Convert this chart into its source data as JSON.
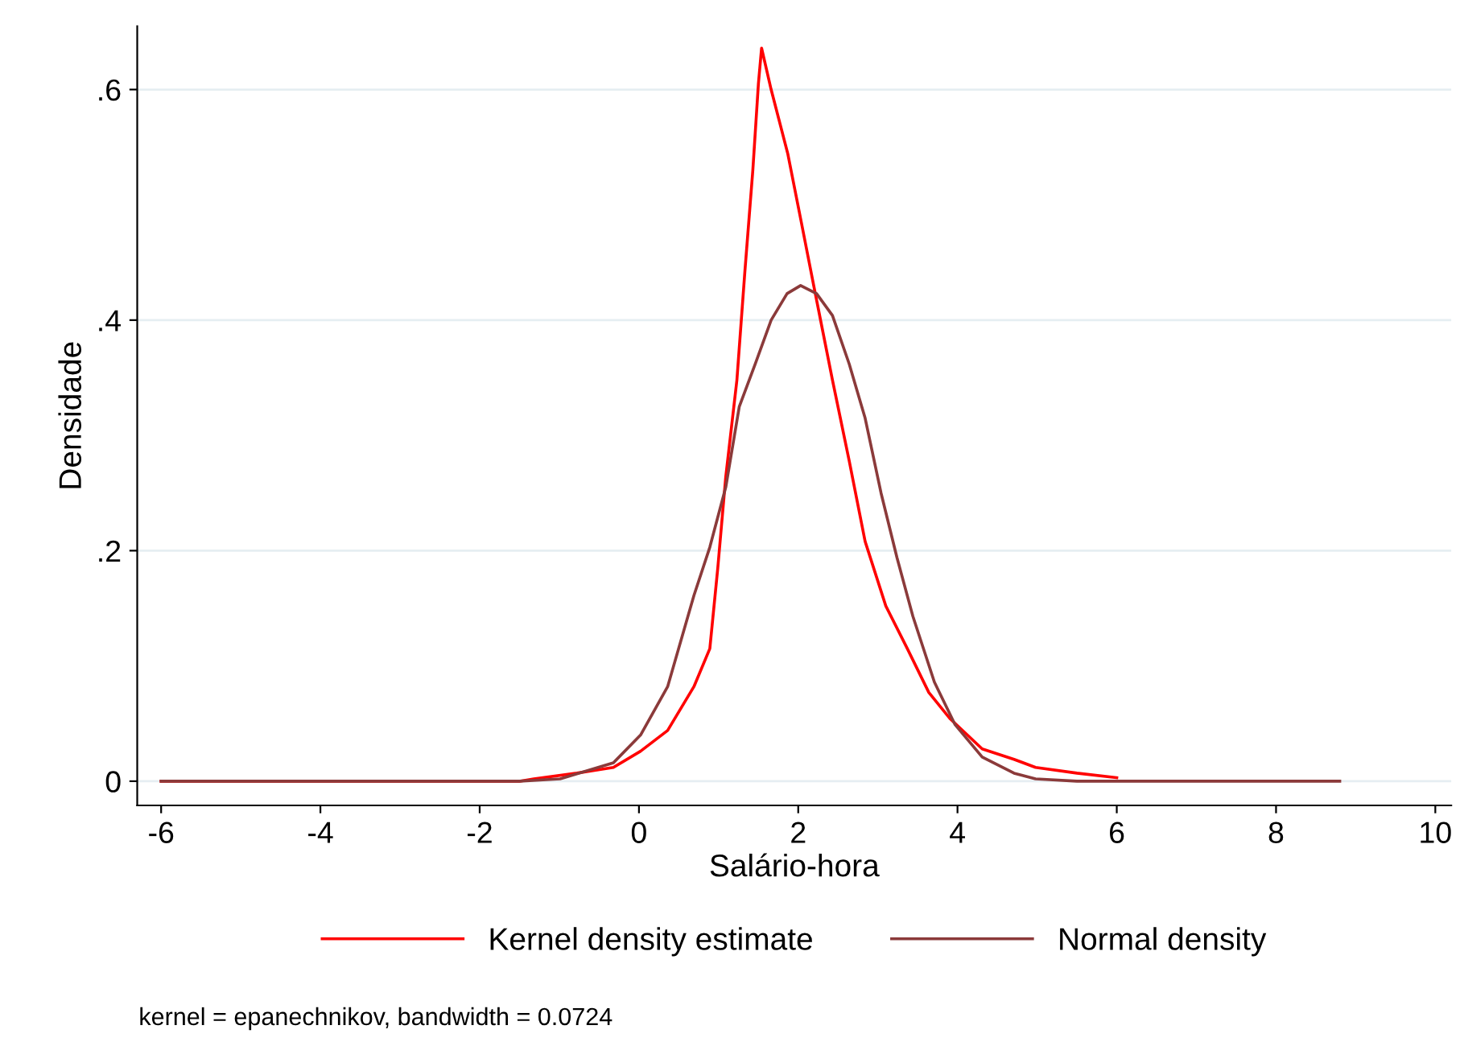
{
  "chart_data": {
    "type": "line",
    "xlabel": "Salário-hora",
    "ylabel": "Densidade",
    "xlim": [
      -6.3,
      10.2
    ],
    "ylim": [
      -0.021,
      0.655
    ],
    "xticks": [
      -6,
      -4,
      -2,
      0,
      2,
      4,
      6,
      8,
      10
    ],
    "yticks": [
      {
        "value": 0,
        "label": "0"
      },
      {
        "value": 0.2,
        "label": ".2"
      },
      {
        "value": 0.4,
        "label": ".4"
      },
      {
        "value": 0.6,
        "label": ".6"
      }
    ],
    "grid": "y",
    "legend": "bottom",
    "line_style": "solid",
    "marker": "none",
    "annotations": [
      "kernel = epanechnikov, bandwidth = 0.0724"
    ],
    "series": [
      {
        "name": "Kernel density estimate",
        "color": "#ff0000",
        "x": [
          -6,
          -1.5,
          -1.32,
          -0.78,
          -0.32,
          0.02,
          0.36,
          0.69,
          0.89,
          0.99,
          1.09,
          1.23,
          1.33,
          1.43,
          1.5,
          1.54,
          1.66,
          1.87,
          2.03,
          2.2,
          2.43,
          2.64,
          2.84,
          3.1,
          3.37,
          3.64,
          3.91,
          4.31,
          4.71,
          4.98,
          5.5,
          6.0
        ],
        "values": [
          0,
          0,
          0.002,
          0.007,
          0.012,
          0.026,
          0.044,
          0.082,
          0.115,
          0.185,
          0.264,
          0.348,
          0.442,
          0.53,
          0.605,
          0.636,
          0.6,
          0.544,
          0.488,
          0.428,
          0.348,
          0.278,
          0.208,
          0.152,
          0.115,
          0.077,
          0.054,
          0.028,
          0.019,
          0.012,
          0.007,
          0.003
        ]
      },
      {
        "name": "Normal density",
        "color": "#8b3a3a",
        "x": [
          -6,
          -1.5,
          -0.99,
          -0.32,
          0.02,
          0.36,
          0.69,
          0.89,
          1.09,
          1.26,
          1.46,
          1.66,
          1.86,
          2.03,
          2.23,
          2.43,
          2.64,
          2.84,
          3.04,
          3.24,
          3.44,
          3.71,
          3.97,
          4.31,
          4.71,
          4.98,
          5.5,
          8.8
        ],
        "values": [
          0,
          0,
          0.002,
          0.016,
          0.04,
          0.082,
          0.161,
          0.203,
          0.255,
          0.325,
          0.362,
          0.4,
          0.423,
          0.43,
          0.423,
          0.404,
          0.362,
          0.315,
          0.25,
          0.194,
          0.143,
          0.086,
          0.049,
          0.021,
          0.007,
          0.002,
          0,
          0
        ]
      }
    ]
  }
}
